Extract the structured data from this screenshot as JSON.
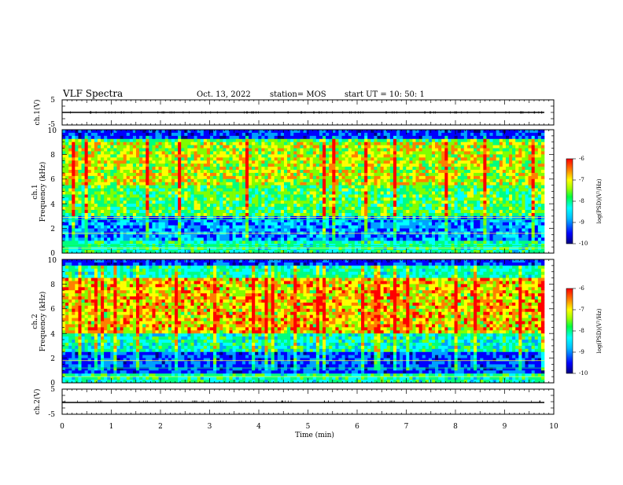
{
  "header": {
    "title": "VLF Spectra",
    "date": "Oct. 13, 2022",
    "station": "station= MOS",
    "start": "start  UT =   10: 50: 1"
  },
  "colors": {
    "spectrogram_scale": [
      "#00007f",
      "#0000ff",
      "#00a0ff",
      "#00ffff",
      "#00ff80",
      "#80ff00",
      "#ffff00",
      "#ff8000",
      "#ff0000"
    ],
    "line_color": "#000000"
  },
  "chart_data": [
    {
      "type": "line",
      "ylabel": "ch.1(V)",
      "ylim": [
        -5,
        5
      ],
      "yticks": [
        "5",
        "-5"
      ],
      "series_level": 0
    },
    {
      "type": "heatmap",
      "ylabel_top": "ch.1",
      "ylabel": "Frequency  (kHz)",
      "ylim": [
        0,
        10
      ],
      "yticks": [
        "0",
        "2",
        "4",
        "6",
        "8",
        "10"
      ],
      "colorbar": {
        "label": "log(PSD)(V²/Hz)",
        "range": [
          -10,
          -6
        ],
        "ticks": [
          "-6",
          "-7",
          "-8",
          "-9",
          "-10"
        ]
      },
      "lines_khz": [
        0.4,
        0.6,
        1.6,
        2.7,
        2.9
      ],
      "intense_band_khz": [
        5.5,
        9.0
      ]
    },
    {
      "type": "heatmap",
      "ylabel_top": "ch.2",
      "ylabel": "Frequency  (kHz)",
      "ylim": [
        0,
        10
      ],
      "yticks": [
        "0",
        "2",
        "4",
        "6",
        "8",
        "10"
      ],
      "colorbar": {
        "label": "log(PSD)(V²/Hz)",
        "range": [
          -10,
          -6
        ],
        "ticks": [
          "-6",
          "-7",
          "-8",
          "-9",
          "-10"
        ]
      },
      "lines_khz": [
        0.5,
        1.2,
        1.8
      ],
      "intense_band_khz": [
        4.0,
        8.5
      ]
    },
    {
      "type": "line",
      "ylabel": "ch.2(V)",
      "ylim": [
        -5,
        5
      ],
      "yticks": [
        "5",
        "-5"
      ],
      "series_level": 0
    }
  ],
  "xaxis": {
    "label": "Time  (min)",
    "range": [
      0,
      10
    ],
    "ticks": [
      "0",
      "1",
      "2",
      "3",
      "4",
      "5",
      "6",
      "7",
      "8",
      "9",
      "10"
    ]
  }
}
